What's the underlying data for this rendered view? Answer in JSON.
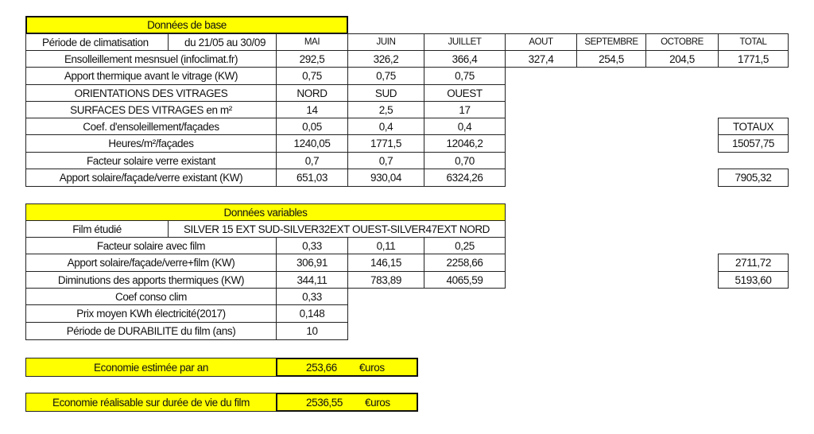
{
  "base": {
    "title": "Données de base",
    "periode_label": "Période de climatisation",
    "periode_value": "du 21/05 au 30/09",
    "months": [
      "MAI",
      "JUIN",
      "JUILLET",
      "AOUT",
      "SEPTEMBRE",
      "OCTOBRE",
      "TOTAL"
    ],
    "ensoleillement_label": "Ensolleillement mesnsuel (infoclimat.fr)",
    "ensoleillement": [
      "292,5",
      "326,2",
      "366,4",
      "327,4",
      "254,5",
      "204,5",
      "1771,5"
    ],
    "apport_thermique_label": "Apport thermique avant le vitrage (KW)",
    "apport_thermique": [
      "0,75",
      "0,75",
      "0,75"
    ],
    "orientations_label": "ORIENTATIONS DES VITRAGES",
    "orientations": [
      "NORD",
      "SUD",
      "OUEST"
    ],
    "surfaces_label": "SURFACES DES VITRAGES en m²",
    "surfaces": [
      "14",
      "2,5",
      "17"
    ],
    "coef_label": "Coef. d'ensoleillement/façades",
    "coef": [
      "0,05",
      "0,4",
      "0,4"
    ],
    "totaux_label": "TOTAUX",
    "heures_label": "Heures/m²/façades",
    "heures": [
      "1240,05",
      "1771,5",
      "12046,2"
    ],
    "heures_total": "15057,75",
    "facteur_label": "Facteur solaire verre existant",
    "facteur": [
      "0,7",
      "0,7",
      "0,70"
    ],
    "apport_solaire_label": "Apport solaire/façade/verre existant  (KW)",
    "apport_solaire": [
      "651,03",
      "930,04",
      "6324,26"
    ],
    "apport_solaire_total": "7905,32"
  },
  "variables": {
    "title": "Données variables",
    "film_label": "Film étudié",
    "film_value": "SILVER 15 EXT SUD-SILVER32EXT OUEST-SILVER47EXT NORD",
    "facteur_film_label": "Facteur solaire avec film",
    "facteur_film": [
      "0,33",
      "0,11",
      "0,25"
    ],
    "apport_film_label": "Apport solaire/façade/verre+film  (KW)",
    "apport_film": [
      "306,91",
      "146,15",
      "2258,66"
    ],
    "apport_film_total": "2711,72",
    "diminution_label": "Diminutions des apports thermiques (KW)",
    "diminution": [
      "344,11",
      "783,89",
      "4065,59"
    ],
    "diminution_total": "5193,60",
    "coef_conso_label": "Coef conso clim",
    "coef_conso": "0,33",
    "prix_label": "Prix moyen KWh électricité(2017)",
    "prix": "0,148",
    "durabilite_label": "Période de DURABILITE du film (ans)",
    "durabilite": "10"
  },
  "results": {
    "annual_label": "Economie estimée par an",
    "annual_value": "253,66",
    "lifetime_label": "Economie réalisable sur durée de vie du film",
    "lifetime_value": "2536,55",
    "currency": "€uros"
  },
  "colors": {
    "highlight": "#ffff00"
  }
}
